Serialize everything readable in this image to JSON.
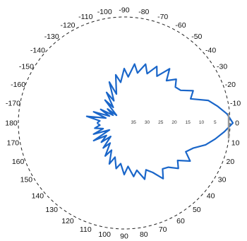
{
  "chart_data": {
    "type": "polar",
    "title": "",
    "angle_unit": "degrees",
    "angle_direction": "clockwise",
    "angle_zero": "right",
    "angle_ticks": [
      0,
      10,
      20,
      30,
      40,
      50,
      60,
      70,
      80,
      90,
      100,
      110,
      120,
      130,
      140,
      150,
      160,
      170,
      180,
      -170,
      -160,
      -150,
      -140,
      -130,
      -120,
      -110,
      -100,
      -90,
      -80,
      -70,
      -60,
      -50,
      -40,
      -30,
      -20,
      -10
    ],
    "angle_tick_labels": [
      "0",
      "10",
      "20",
      "30",
      "40",
      "50",
      "60",
      "70",
      "80",
      "90",
      "100",
      "110",
      "120",
      "130",
      "140",
      "150",
      "160",
      "170",
      "180",
      "-170",
      "-160",
      "-150",
      "-140",
      "-130",
      "-120",
      "-110",
      "-100",
      "-90",
      "-80",
      "-70",
      "-60",
      "-50",
      "-40",
      "-30",
      "-20",
      "-10"
    ],
    "radial_axis": "attenuation (dB), 0 at outer edge of lobe scale, increasing toward center",
    "radial_ticks": [
      5,
      10,
      15,
      20,
      25,
      30,
      35
    ],
    "radial_tick_labels": [
      "5",
      "10",
      "15",
      "20",
      "25",
      "30",
      "35"
    ],
    "radial_range": [
      0,
      40
    ],
    "grid": false,
    "series": [
      {
        "color": "#1a66c9",
        "angles": [
          -180,
          -175,
          -170,
          -165,
          -160,
          -155,
          -150,
          -145,
          -140,
          -135,
          -130,
          -125,
          -120,
          -115,
          -110,
          -105,
          -100,
          -95,
          -90,
          -85,
          -80,
          -75,
          -70,
          -65,
          -60,
          -55,
          -50,
          -45,
          -40,
          -35,
          -30,
          -25,
          -20,
          -15,
          -10,
          -5,
          0,
          5,
          10,
          15,
          20,
          25,
          30,
          35,
          40,
          45,
          50,
          55,
          60,
          65,
          70,
          75,
          80,
          85,
          90,
          95,
          100,
          105,
          110,
          115,
          120,
          125,
          130,
          135,
          140,
          145,
          150,
          155,
          160,
          165,
          170,
          175,
          180
        ],
        "values_db": [
          -30,
          -31,
          -26,
          -33,
          -28,
          -34,
          -30,
          -35,
          -32,
          -36,
          -29,
          -33,
          -27,
          -31,
          -24,
          -29,
          -22,
          -25,
          -20,
          -23,
          -18,
          -21,
          -17,
          -20,
          -16,
          -19,
          -14,
          -18,
          -15,
          -17,
          -16,
          -12,
          -14,
          -8,
          -5,
          -2,
          0,
          -3,
          -6,
          -9,
          -13,
          -15,
          -12,
          -16,
          -14,
          -17,
          -18,
          -15,
          -19,
          -21,
          -18,
          -22,
          -20,
          -24,
          -21,
          -25,
          -23,
          -27,
          -24,
          -29,
          -26,
          -31,
          -28,
          -33,
          -29,
          -32,
          -27,
          -34,
          -28,
          -32,
          -29,
          -31,
          -30
        ]
      }
    ]
  }
}
